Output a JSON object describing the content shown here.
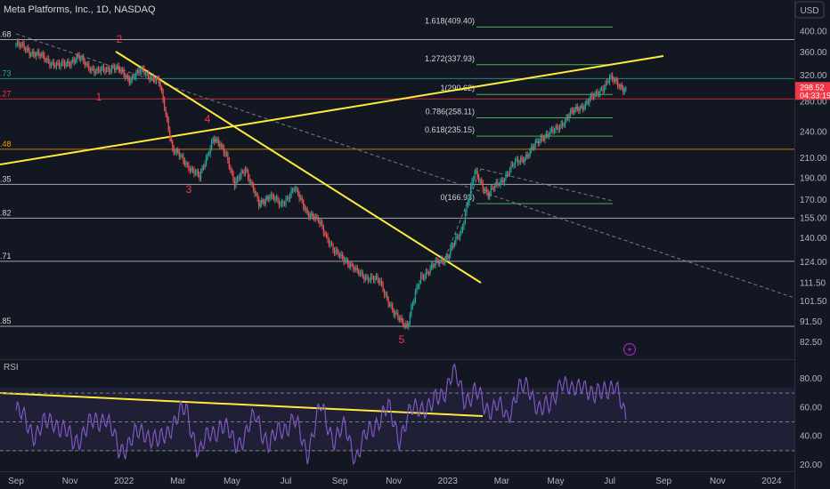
{
  "header": {
    "title": "Meta Platforms, Inc., 1D, NASDAQ",
    "currency": "USD",
    "rsi_label": "RSI"
  },
  "price_badge": {
    "price": "298.52",
    "countdown": "04:33:19"
  },
  "chart_data": [
    {
      "type": "candlestick",
      "title": "Meta Platforms, Inc., 1D, NASDAQ",
      "x_ticks": [
        "Sep",
        "Nov",
        "2022",
        "Mar",
        "May",
        "Jul",
        "Sep",
        "Nov",
        "2023",
        "Mar",
        "May",
        "Jul",
        "Sep",
        "Nov",
        "2024"
      ],
      "y_ticks": [
        400.0,
        360.0,
        320.0,
        280.0,
        240.0,
        210.0,
        190.0,
        170.0,
        155.0,
        140.0,
        124.0,
        111.5,
        101.5,
        91.5,
        82.5
      ],
      "y_scale": "log",
      "ylim": [
        79,
        420
      ],
      "last_price": 298.52,
      "path_months": [
        0,
        0.8,
        1.6,
        2.3,
        3.0,
        3.6,
        4.2,
        4.7,
        5.3,
        5.8,
        6.3,
        6.8,
        7.3,
        7.8,
        8.1,
        8.5,
        9.0,
        9.4,
        9.8,
        10.3,
        10.8,
        11.3,
        11.8,
        12.2,
        12.6,
        13.0,
        13.5,
        14.0,
        14.5,
        15.0,
        15.5,
        16.0,
        16.5,
        17.0,
        17.5,
        18.0,
        18.5,
        19.0,
        19.5,
        20.0,
        20.5,
        21.0,
        21.5,
        22.0,
        22.6
      ],
      "path_close": [
        375,
        355,
        335,
        350,
        325,
        335,
        315,
        328,
        308,
        220,
        205,
        190,
        232,
        215,
        183,
        200,
        165,
        175,
        165,
        180,
        160,
        150,
        130,
        126,
        118,
        115,
        112,
        95,
        90,
        115,
        122,
        128,
        145,
        195,
        175,
        188,
        205,
        215,
        235,
        242,
        262,
        275,
        290,
        315,
        298
      ],
      "fib_levels": [
        {
          "label": "1.618(409.40)",
          "price": 409.4
        },
        {
          "label": "1.272(337.93)",
          "price": 337.93
        },
        {
          "label": "1(290.62)",
          "price": 290.62
        },
        {
          "label": "0.786(258.11)",
          "price": 258.11
        },
        {
          "label": "0.618(235.15)",
          "price": 235.15
        },
        {
          "label": "0(166.93)",
          "price": 166.93
        }
      ],
      "horizontal_levels": [
        {
          "price": 384,
          "left_label": ".68",
          "color": "#d1d4dc"
        },
        {
          "price": 315,
          "left_label": ".73",
          "color": "#22ab94"
        },
        {
          "price": 284,
          "left_label": ".27",
          "color": "#f23645"
        },
        {
          "price": 220,
          "left_label": ".48",
          "color": "#ff9800"
        },
        {
          "price": 184,
          "left_label": ".35",
          "color": "#d1d4dc"
        },
        {
          "price": 155,
          "left_label": ".82",
          "color": "#d1d4dc"
        },
        {
          "price": 124.5,
          "left_label": ".71",
          "color": "#d1d4dc"
        },
        {
          "price": 89.5,
          "left_label": ".85",
          "color": "#d1d4dc"
        }
      ],
      "wave_labels": [
        "1",
        "2",
        "3",
        "4",
        "5"
      ]
    },
    {
      "type": "line",
      "title": "RSI",
      "y_ticks": [
        80.0,
        60.0,
        40.0,
        20.0
      ],
      "ylim": [
        17,
        93
      ],
      "overbought": 70,
      "midline": 50,
      "oversold": 30,
      "rsi_months": [
        0,
        0.7,
        1.4,
        2.1,
        2.8,
        3.3,
        3.8,
        4.3,
        4.8,
        5.3,
        5.8,
        6.3,
        6.8,
        7.2,
        7.6,
        8.1,
        8.5,
        8.9,
        9.4,
        9.8,
        10.3,
        10.8,
        11.3,
        11.8,
        12.2,
        12.6,
        13.0,
        13.4,
        13.8,
        14.2,
        14.6,
        15.0,
        15.4,
        15.8,
        16.2,
        16.6,
        17.0,
        17.4,
        17.8,
        18.2,
        18.6,
        19.0,
        19.4,
        19.8,
        20.2,
        20.6,
        21.0,
        21.4,
        21.8,
        22.2,
        22.6
      ],
      "rsi_values": [
        58,
        42,
        52,
        36,
        48,
        55,
        30,
        38,
        44,
        34,
        50,
        58,
        28,
        42,
        48,
        36,
        40,
        55,
        32,
        46,
        50,
        30,
        60,
        38,
        45,
        26,
        40,
        52,
        58,
        40,
        55,
        62,
        60,
        70,
        85,
        66,
        72,
        58,
        64,
        50,
        76,
        70,
        62,
        58,
        82,
        68,
        80,
        64,
        76,
        72,
        55
      ]
    }
  ]
}
